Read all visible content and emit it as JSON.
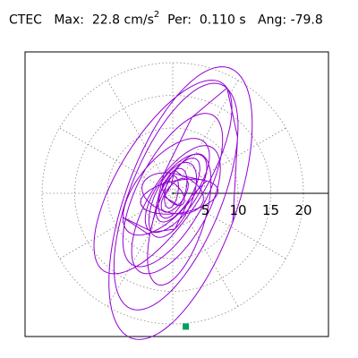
{
  "header": {
    "station": "CTEC",
    "max_label": "Max:",
    "max_value": "22.8",
    "max_unit": "cm/s",
    "max_unit_exp": "2",
    "per_label": "Per:",
    "per_value": "0.110 s",
    "ang_label": "Ang:",
    "ang_value": "-79.8"
  },
  "chart_data": {
    "type": "polar-trace",
    "radial_ticks": [
      "5",
      "10",
      "15",
      "20"
    ],
    "radial_values": [
      5,
      10,
      15,
      20
    ],
    "grid": "dotted polar rings and 30° spokes",
    "axis": "positive x axis drawn solid",
    "series": [
      {
        "end_point": [
          2,
          -20.4
        ]
      }
    ],
    "colors": {
      "trace": "#9400d3",
      "end_marker": "#00a060",
      "grid": "#888888",
      "axis": "#000000"
    }
  }
}
